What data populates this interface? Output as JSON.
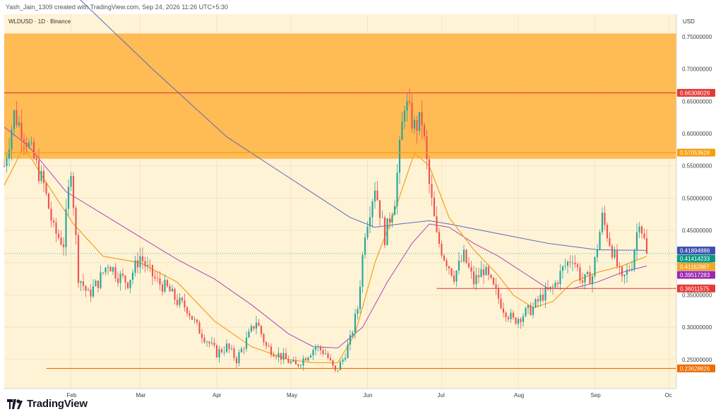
{
  "header": {
    "caption": "Yash_Jain_1309 created with TradingView.com, Sep 24, 2026 11:26 UTC+5:30"
  },
  "chart_meta": {
    "symbol_line": "WLDUSD · 1D · Binance",
    "currency": "USD"
  },
  "brand": {
    "name": "TradingView"
  },
  "chart_data": {
    "type": "candlestick",
    "currency": "USD",
    "ylim": [
      0.205,
      0.785
    ],
    "y_ticks": [
      0.75,
      0.7,
      0.65,
      0.6,
      0.55,
      0.5,
      0.45,
      0.4,
      0.35,
      0.3,
      0.25
    ],
    "y_tick_labels": [
      "0.75000000",
      "0.70000000",
      "0.65000000",
      "0.60000000",
      "0.55000000",
      "0.50000000",
      "0.45000000",
      "0.40000000",
      "0.35000000",
      "0.30000000",
      "0.25000000"
    ],
    "x_ticks": [
      {
        "label": "Feb",
        "day": 27
      },
      {
        "label": "Mar",
        "day": 55
      },
      {
        "label": "Apr",
        "day": 86
      },
      {
        "label": "May",
        "day": 116
      },
      {
        "label": "Jun",
        "day": 147
      },
      {
        "label": "Jul",
        "day": 177
      },
      {
        "label": "Aug",
        "day": 208
      },
      {
        "label": "Sep",
        "day": 239
      },
      {
        "label": "Oc",
        "day": 269
      }
    ],
    "x_range_days": [
      0,
      272
    ],
    "colors": {
      "up": "#26a69a",
      "down": "#ef5350",
      "zone": "#ffb74d",
      "bg": "#fff3d6",
      "ma200": "#5c6bc0",
      "ma50": "#ab47bc",
      "ma20": "#f5a623",
      "level": "#e53935",
      "support": "#ef6c00"
    },
    "zone": {
      "from": 0.561,
      "to": 0.755
    },
    "levels": [
      {
        "value": 0.66308026,
        "label": "0.66308026",
        "color": "#e53935",
        "start_day": 0
      },
      {
        "value": 0.57053628,
        "label": "0.57053628",
        "color": "#f59e0b",
        "start_day": 0
      },
      {
        "value": 0.36011575,
        "label": "0.36011575",
        "color": "#e53935",
        "start_day": 175
      },
      {
        "value": 0.23628826,
        "label": "0.23628826",
        "color": "#ef6c00",
        "start_day": 17
      }
    ],
    "price_labels": [
      {
        "value": 0.41894886,
        "label": "0.41894886",
        "color": "#3f51b5"
      },
      {
        "value": 0.41414233,
        "label": "0.41414233",
        "color": "#089981"
      },
      {
        "value": 0.41162887,
        "label": "0.41162887",
        "color": "#f5a623"
      },
      {
        "value": 0.39517283,
        "label": "0.39517283",
        "color": "#9c27b0"
      }
    ],
    "close_path": [
      [
        0,
        0.55
      ],
      [
        4,
        0.63
      ],
      [
        8,
        0.6
      ],
      [
        12,
        0.56
      ],
      [
        16,
        0.52
      ],
      [
        20,
        0.45
      ],
      [
        24,
        0.43
      ],
      [
        27,
        0.55
      ],
      [
        30,
        0.38
      ],
      [
        34,
        0.35
      ],
      [
        38,
        0.37
      ],
      [
        42,
        0.4
      ],
      [
        46,
        0.38
      ],
      [
        50,
        0.37
      ],
      [
        55,
        0.41
      ],
      [
        58,
        0.39
      ],
      [
        62,
        0.37
      ],
      [
        66,
        0.36
      ],
      [
        70,
        0.34
      ],
      [
        74,
        0.33
      ],
      [
        78,
        0.3
      ],
      [
        82,
        0.28
      ],
      [
        86,
        0.26
      ],
      [
        90,
        0.27
      ],
      [
        94,
        0.25
      ],
      [
        98,
        0.28
      ],
      [
        102,
        0.31
      ],
      [
        106,
        0.27
      ],
      [
        110,
        0.26
      ],
      [
        114,
        0.25
      ],
      [
        118,
        0.24
      ],
      [
        122,
        0.255
      ],
      [
        126,
        0.27
      ],
      [
        130,
        0.26
      ],
      [
        134,
        0.23
      ],
      [
        137,
        0.25
      ],
      [
        140,
        0.28
      ],
      [
        143,
        0.33
      ],
      [
        146,
        0.45
      ],
      [
        150,
        0.52
      ],
      [
        154,
        0.44
      ],
      [
        158,
        0.5
      ],
      [
        162,
        0.65
      ],
      [
        166,
        0.61
      ],
      [
        169,
        0.62
      ],
      [
        172,
        0.52
      ],
      [
        175,
        0.44
      ],
      [
        178,
        0.41
      ],
      [
        182,
        0.38
      ],
      [
        186,
        0.41
      ],
      [
        190,
        0.37
      ],
      [
        194,
        0.39
      ],
      [
        198,
        0.36
      ],
      [
        202,
        0.33
      ],
      [
        206,
        0.31
      ],
      [
        210,
        0.32
      ],
      [
        214,
        0.33
      ],
      [
        218,
        0.35
      ],
      [
        222,
        0.36
      ],
      [
        226,
        0.39
      ],
      [
        230,
        0.41
      ],
      [
        234,
        0.37
      ],
      [
        238,
        0.38
      ],
      [
        242,
        0.47
      ],
      [
        246,
        0.42
      ],
      [
        250,
        0.37
      ],
      [
        254,
        0.4
      ],
      [
        257,
        0.47
      ],
      [
        260,
        0.416
      ]
    ],
    "ma200": [
      [
        30,
        0.81
      ],
      [
        60,
        0.7
      ],
      [
        90,
        0.595
      ],
      [
        120,
        0.52
      ],
      [
        140,
        0.47
      ],
      [
        150,
        0.455
      ],
      [
        160,
        0.46
      ],
      [
        172,
        0.465
      ],
      [
        180,
        0.46
      ],
      [
        200,
        0.445
      ],
      [
        220,
        0.43
      ],
      [
        240,
        0.42
      ],
      [
        260,
        0.419
      ]
    ],
    "ma50": [
      [
        0,
        0.61
      ],
      [
        10,
        0.58
      ],
      [
        25,
        0.51
      ],
      [
        40,
        0.475
      ],
      [
        55,
        0.44
      ],
      [
        70,
        0.405
      ],
      [
        85,
        0.375
      ],
      [
        100,
        0.335
      ],
      [
        115,
        0.29
      ],
      [
        125,
        0.27
      ],
      [
        135,
        0.268
      ],
      [
        145,
        0.3
      ],
      [
        155,
        0.37
      ],
      [
        165,
        0.43
      ],
      [
        172,
        0.46
      ],
      [
        180,
        0.455
      ],
      [
        190,
        0.43
      ],
      [
        200,
        0.41
      ],
      [
        210,
        0.385
      ],
      [
        220,
        0.36
      ],
      [
        230,
        0.36
      ],
      [
        240,
        0.37
      ],
      [
        250,
        0.385
      ],
      [
        260,
        0.395
      ]
    ],
    "ma20": [
      [
        0,
        0.52
      ],
      [
        8,
        0.58
      ],
      [
        16,
        0.53
      ],
      [
        28,
        0.46
      ],
      [
        40,
        0.41
      ],
      [
        55,
        0.4
      ],
      [
        70,
        0.37
      ],
      [
        85,
        0.31
      ],
      [
        100,
        0.27
      ],
      [
        115,
        0.25
      ],
      [
        125,
        0.245
      ],
      [
        135,
        0.245
      ],
      [
        142,
        0.29
      ],
      [
        150,
        0.4
      ],
      [
        158,
        0.48
      ],
      [
        166,
        0.57
      ],
      [
        172,
        0.55
      ],
      [
        180,
        0.47
      ],
      [
        190,
        0.42
      ],
      [
        200,
        0.38
      ],
      [
        206,
        0.35
      ],
      [
        214,
        0.33
      ],
      [
        222,
        0.34
      ],
      [
        230,
        0.37
      ],
      [
        240,
        0.385
      ],
      [
        250,
        0.395
      ],
      [
        260,
        0.41
      ]
    ],
    "last_price": 0.41414233
  }
}
